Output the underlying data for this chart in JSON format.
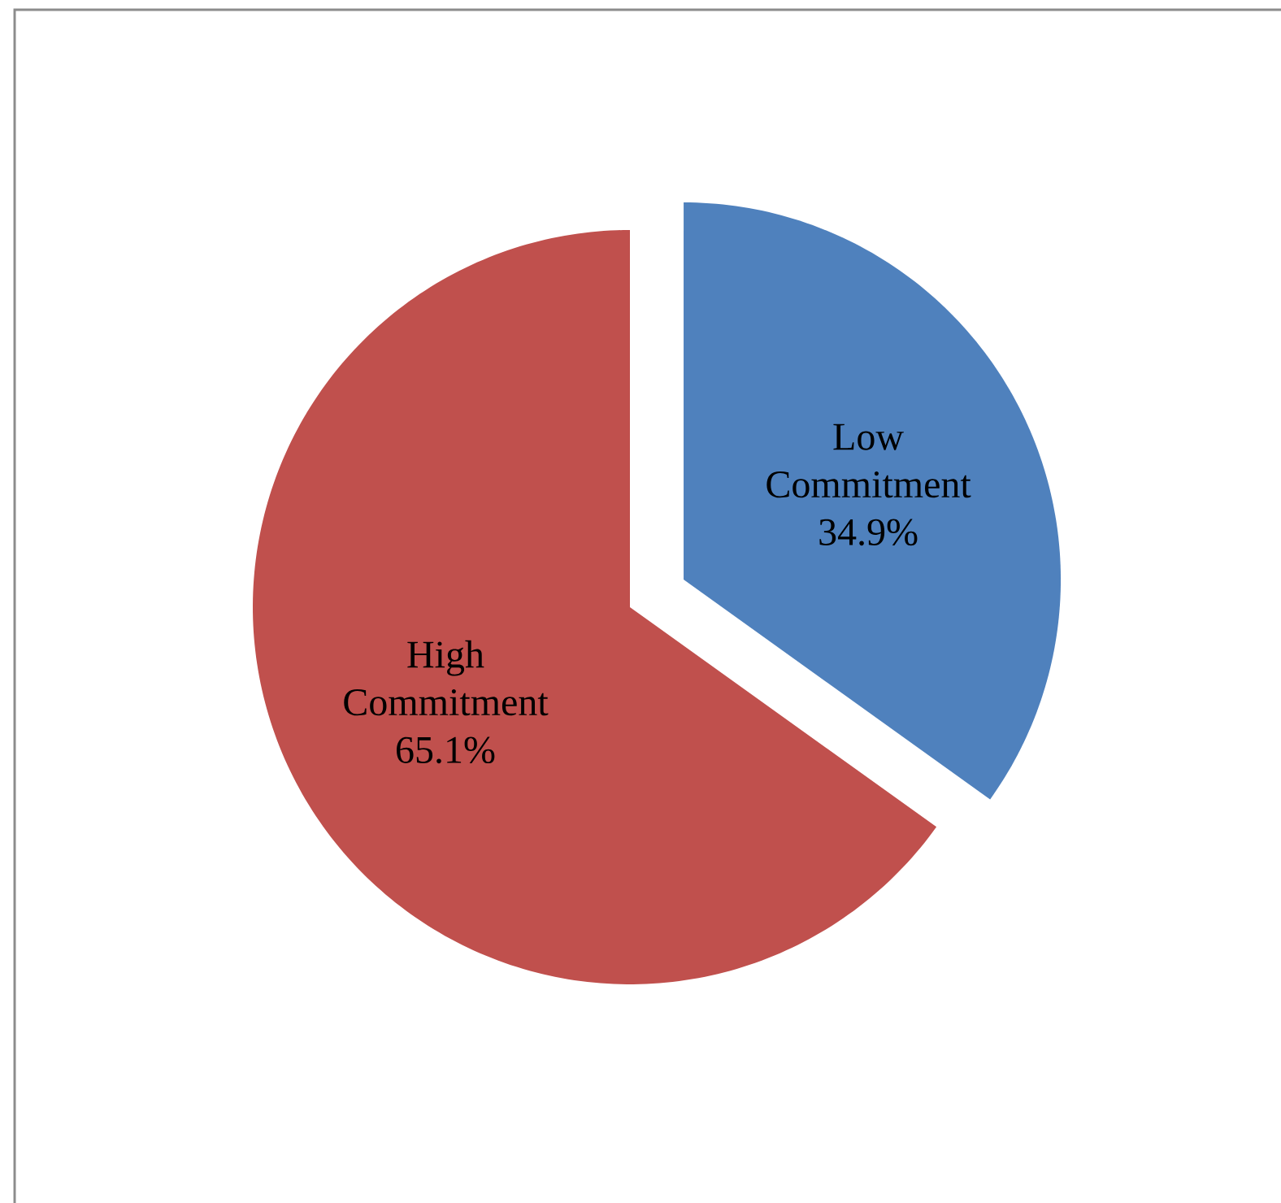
{
  "chart_data": {
    "type": "pie",
    "categories": [
      "Low Commitment",
      "High Commitment"
    ],
    "values": [
      34.9,
      65.1
    ],
    "colors": [
      "#4f81bd",
      "#c0504d"
    ],
    "value_labels": [
      "34.9%",
      "65.1%"
    ]
  }
}
